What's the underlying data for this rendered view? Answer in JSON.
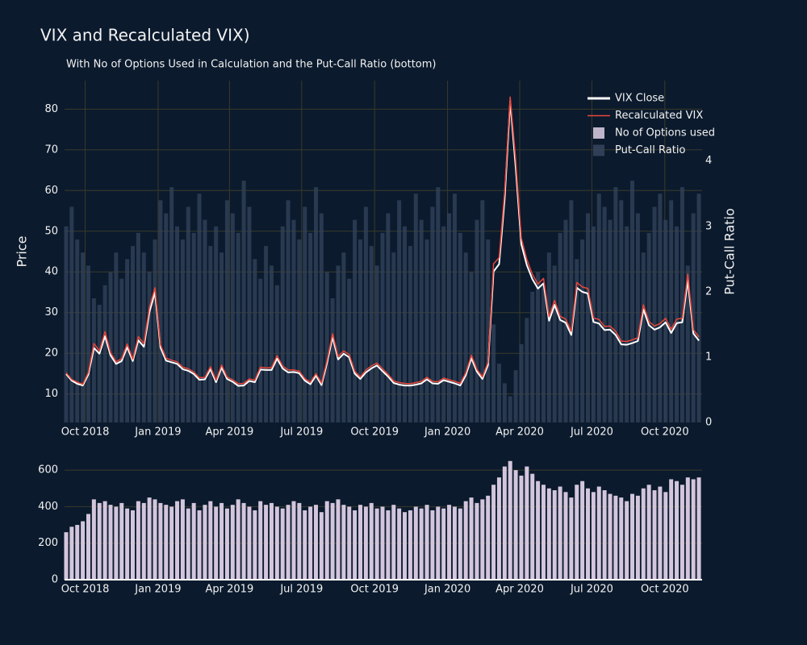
{
  "chart_data": [
    {
      "type": "line",
      "title": "VIX and Recalculated VIX)",
      "subtitle": "With No of Options Used in Calculation and the Put-Call Ratio (bottom)",
      "ylabel": "Price",
      "y2label": "Put-Call Ratio",
      "legend": "top-right",
      "grid": true,
      "x": [
        "2018-09-07",
        "2018-09-14",
        "2018-09-21",
        "2018-09-28",
        "2018-10-05",
        "2018-10-12",
        "2018-10-19",
        "2018-10-26",
        "2018-11-02",
        "2018-11-09",
        "2018-11-16",
        "2018-11-23",
        "2018-11-30",
        "2018-12-07",
        "2018-12-14",
        "2018-12-21",
        "2018-12-28",
        "2019-01-04",
        "2019-01-11",
        "2019-01-18",
        "2019-01-25",
        "2019-02-01",
        "2019-02-08",
        "2019-02-15",
        "2019-02-22",
        "2019-03-01",
        "2019-03-08",
        "2019-03-15",
        "2019-03-22",
        "2019-03-29",
        "2019-04-05",
        "2019-04-12",
        "2019-04-19",
        "2019-04-26",
        "2019-05-03",
        "2019-05-10",
        "2019-05-17",
        "2019-05-24",
        "2019-05-31",
        "2019-06-07",
        "2019-06-14",
        "2019-06-21",
        "2019-06-28",
        "2019-07-05",
        "2019-07-12",
        "2019-07-19",
        "2019-07-26",
        "2019-08-02",
        "2019-08-09",
        "2019-08-16",
        "2019-08-23",
        "2019-08-30",
        "2019-09-06",
        "2019-09-13",
        "2019-09-20",
        "2019-09-27",
        "2019-10-04",
        "2019-10-11",
        "2019-10-18",
        "2019-10-25",
        "2019-11-01",
        "2019-11-08",
        "2019-11-15",
        "2019-11-22",
        "2019-11-29",
        "2019-12-06",
        "2019-12-13",
        "2019-12-20",
        "2019-12-27",
        "2020-01-03",
        "2020-01-10",
        "2020-01-17",
        "2020-01-24",
        "2020-01-31",
        "2020-02-07",
        "2020-02-14",
        "2020-02-21",
        "2020-02-28",
        "2020-03-06",
        "2020-03-13",
        "2020-03-20",
        "2020-03-27",
        "2020-04-03",
        "2020-04-10",
        "2020-04-17",
        "2020-04-24",
        "2020-05-01",
        "2020-05-08",
        "2020-05-15",
        "2020-05-22",
        "2020-05-29",
        "2020-06-05",
        "2020-06-12",
        "2020-06-19",
        "2020-06-26",
        "2020-07-03",
        "2020-07-10",
        "2020-07-17",
        "2020-07-24",
        "2020-07-31",
        "2020-08-07",
        "2020-08-14",
        "2020-08-21",
        "2020-08-28",
        "2020-09-04",
        "2020-09-11",
        "2020-09-18",
        "2020-09-25",
        "2020-10-02",
        "2020-10-09",
        "2020-10-16",
        "2020-10-23",
        "2020-10-30",
        "2020-11-06",
        "2020-11-13"
      ],
      "xlim": [
        "2018-09-05",
        "2020-11-17"
      ],
      "xticks": [
        {
          "value": "2018-10-01",
          "label": "Oct 2018"
        },
        {
          "value": "2019-01-01",
          "label": "Jan 2019"
        },
        {
          "value": "2019-04-01",
          "label": "Apr 2019"
        },
        {
          "value": "2019-07-01",
          "label": "Jul 2019"
        },
        {
          "value": "2019-10-01",
          "label": "Oct 2019"
        },
        {
          "value": "2020-01-01",
          "label": "Jan 2020"
        },
        {
          "value": "2020-04-01",
          "label": "Apr 2020"
        },
        {
          "value": "2020-07-01",
          "label": "Jul 2020"
        },
        {
          "value": "2020-10-01",
          "label": "Oct 2020"
        }
      ],
      "ylim": [
        3,
        87
      ],
      "yticks": [
        10,
        20,
        30,
        40,
        50,
        60,
        70,
        80
      ],
      "y2lim": [
        0,
        5.23
      ],
      "y2ticks": [
        0,
        1,
        2,
        3,
        4
      ],
      "series": [
        {
          "name": "VIX Close",
          "color": "#ffffff",
          "type": "line",
          "values": [
            14.9,
            13.3,
            12.5,
            12.1,
            14.8,
            21.3,
            19.9,
            24.2,
            19.5,
            17.4,
            18.1,
            21.5,
            18.1,
            23.2,
            21.6,
            30.1,
            35.0,
            21.4,
            18.2,
            17.8,
            17.4,
            16.1,
            15.7,
            14.9,
            13.5,
            13.6,
            16.1,
            12.9,
            16.5,
            13.7,
            13.0,
            12.0,
            12.1,
            13.2,
            12.9,
            16.0,
            15.9,
            15.9,
            18.7,
            16.3,
            15.3,
            15.4,
            15.1,
            13.3,
            12.4,
            14.5,
            12.2,
            17.6,
            24.0,
            18.5,
            19.9,
            19.0,
            15.0,
            13.7,
            15.3,
            16.3,
            17.0,
            15.6,
            14.3,
            12.7,
            12.3,
            12.1,
            12.05,
            12.3,
            12.6,
            13.6,
            12.6,
            12.5,
            13.4,
            13.0,
            12.6,
            12.1,
            14.6,
            18.8,
            15.5,
            13.7,
            17.1,
            40.1,
            41.9,
            57.8,
            82.0,
            65.5,
            46.8,
            41.7,
            38.2,
            35.9,
            37.2,
            28.0,
            31.9,
            28.2,
            27.5,
            24.5,
            36.1,
            35.1,
            34.7,
            27.7,
            27.3,
            25.7,
            25.8,
            24.5,
            22.2,
            22.1,
            22.5,
            23.0,
            30.8,
            26.9,
            25.8,
            26.4,
            27.6,
            25.0,
            27.4,
            27.6,
            38.0,
            24.9,
            23.1
          ]
        },
        {
          "name": "Recalculated VIX",
          "color": "#e8473a",
          "type": "line",
          "values": [
            15.2,
            13.6,
            12.9,
            12.4,
            15.3,
            22.4,
            20.6,
            25.3,
            20.2,
            17.9,
            18.7,
            22.3,
            18.6,
            24.1,
            22.4,
            31.2,
            36.1,
            22.1,
            18.8,
            18.3,
            17.9,
            16.6,
            16.2,
            15.4,
            14.0,
            14.1,
            16.7,
            13.4,
            17.1,
            14.2,
            13.5,
            12.5,
            12.6,
            13.7,
            13.4,
            16.6,
            16.4,
            16.5,
            19.4,
            16.9,
            15.9,
            15.9,
            15.6,
            13.8,
            12.9,
            15.0,
            12.7,
            18.2,
            24.8,
            19.2,
            20.6,
            19.7,
            15.6,
            14.2,
            15.9,
            16.9,
            17.6,
            16.2,
            14.8,
            13.2,
            12.8,
            12.6,
            12.5,
            12.8,
            13.1,
            14.1,
            13.1,
            13.0,
            13.9,
            13.5,
            13.1,
            12.6,
            15.2,
            19.5,
            16.1,
            14.2,
            17.8,
            42.0,
            43.5,
            59.6,
            83.0,
            67.4,
            48.3,
            43.1,
            39.4,
            37.0,
            38.4,
            29.0,
            33.0,
            29.1,
            28.4,
            25.4,
            37.4,
            36.3,
            35.9,
            28.7,
            28.3,
            26.6,
            26.7,
            25.4,
            23.0,
            22.9,
            23.3,
            23.8,
            31.9,
            27.8,
            26.7,
            27.3,
            28.6,
            25.9,
            28.4,
            28.6,
            39.5,
            25.8,
            24.0
          ]
        },
        {
          "name": "Put-Call Ratio",
          "color": "#34445c",
          "type": "bar",
          "axis": "y2",
          "values": [
            3.0,
            3.3,
            2.8,
            2.6,
            2.4,
            1.9,
            1.8,
            2.1,
            2.3,
            2.6,
            2.2,
            2.5,
            2.7,
            2.9,
            2.6,
            2.3,
            2.8,
            3.4,
            3.2,
            3.6,
            3.0,
            2.8,
            3.3,
            2.9,
            3.5,
            3.1,
            2.7,
            3.0,
            2.6,
            3.4,
            3.2,
            2.9,
            3.7,
            3.3,
            2.5,
            2.2,
            2.7,
            2.4,
            2.1,
            3.0,
            3.4,
            3.1,
            2.8,
            3.3,
            2.9,
            3.6,
            3.2,
            2.3,
            1.9,
            2.4,
            2.6,
            2.2,
            3.1,
            2.8,
            3.3,
            2.7,
            2.4,
            2.9,
            3.2,
            2.6,
            3.4,
            3.0,
            2.7,
            3.5,
            3.1,
            2.8,
            3.3,
            3.6,
            3.0,
            3.2,
            3.5,
            2.9,
            2.6,
            2.3,
            3.1,
            3.4,
            2.8,
            1.5,
            0.9,
            0.6,
            0.4,
            0.8,
            1.2,
            1.6,
            2.0,
            2.3,
            2.1,
            2.6,
            2.4,
            2.9,
            3.1,
            3.4,
            2.5,
            2.8,
            3.2,
            3.0,
            3.5,
            3.3,
            3.1,
            3.6,
            3.4,
            3.0,
            3.7,
            3.2,
            2.6,
            2.9,
            3.3,
            3.5,
            3.1,
            3.4,
            3.0,
            3.6,
            2.4,
            3.2,
            3.5
          ]
        }
      ]
    },
    {
      "type": "bar",
      "grid": true,
      "x": [
        "2018-09-07",
        "2018-09-14",
        "2018-09-21",
        "2018-09-28",
        "2018-10-05",
        "2018-10-12",
        "2018-10-19",
        "2018-10-26",
        "2018-11-02",
        "2018-11-09",
        "2018-11-16",
        "2018-11-23",
        "2018-11-30",
        "2018-12-07",
        "2018-12-14",
        "2018-12-21",
        "2018-12-28",
        "2019-01-04",
        "2019-01-11",
        "2019-01-18",
        "2019-01-25",
        "2019-02-01",
        "2019-02-08",
        "2019-02-15",
        "2019-02-22",
        "2019-03-01",
        "2019-03-08",
        "2019-03-15",
        "2019-03-22",
        "2019-03-29",
        "2019-04-05",
        "2019-04-12",
        "2019-04-19",
        "2019-04-26",
        "2019-05-03",
        "2019-05-10",
        "2019-05-17",
        "2019-05-24",
        "2019-05-31",
        "2019-06-07",
        "2019-06-14",
        "2019-06-21",
        "2019-06-28",
        "2019-07-05",
        "2019-07-12",
        "2019-07-19",
        "2019-07-26",
        "2019-08-02",
        "2019-08-09",
        "2019-08-16",
        "2019-08-23",
        "2019-08-30",
        "2019-09-06",
        "2019-09-13",
        "2019-09-20",
        "2019-09-27",
        "2019-10-04",
        "2019-10-11",
        "2019-10-18",
        "2019-10-25",
        "2019-11-01",
        "2019-11-08",
        "2019-11-15",
        "2019-11-22",
        "2019-11-29",
        "2019-12-06",
        "2019-12-13",
        "2019-12-20",
        "2019-12-27",
        "2020-01-03",
        "2020-01-10",
        "2020-01-17",
        "2020-01-24",
        "2020-01-31",
        "2020-02-07",
        "2020-02-14",
        "2020-02-21",
        "2020-02-28",
        "2020-03-06",
        "2020-03-13",
        "2020-03-20",
        "2020-03-27",
        "2020-04-03",
        "2020-04-10",
        "2020-04-17",
        "2020-04-24",
        "2020-05-01",
        "2020-05-08",
        "2020-05-15",
        "2020-05-22",
        "2020-05-29",
        "2020-06-05",
        "2020-06-12",
        "2020-06-19",
        "2020-06-26",
        "2020-07-03",
        "2020-07-10",
        "2020-07-17",
        "2020-07-24",
        "2020-07-31",
        "2020-08-07",
        "2020-08-14",
        "2020-08-21",
        "2020-08-28",
        "2020-09-04",
        "2020-09-11",
        "2020-09-18",
        "2020-09-25",
        "2020-10-02",
        "2020-10-09",
        "2020-10-16",
        "2020-10-23",
        "2020-10-30",
        "2020-11-06",
        "2020-11-13"
      ],
      "xlim": [
        "2018-09-05",
        "2020-11-17"
      ],
      "xticks": [
        {
          "value": "2018-10-01",
          "label": "Oct 2018"
        },
        {
          "value": "2019-01-01",
          "label": "Jan 2019"
        },
        {
          "value": "2019-04-01",
          "label": "Apr 2019"
        },
        {
          "value": "2019-07-01",
          "label": "Jul 2019"
        },
        {
          "value": "2019-10-01",
          "label": "Oct 2019"
        },
        {
          "value": "2020-01-01",
          "label": "Jan 2020"
        },
        {
          "value": "2020-04-01",
          "label": "Apr 2020"
        },
        {
          "value": "2020-07-01",
          "label": "Jul 2020"
        },
        {
          "value": "2020-10-01",
          "label": "Oct 2020"
        }
      ],
      "ylim": [
        0,
        680
      ],
      "yticks": [
        0,
        200,
        400,
        600
      ],
      "series": [
        {
          "name": "No of Options used",
          "color": "#d3c6dc",
          "type": "bar",
          "values": [
            260,
            290,
            300,
            320,
            360,
            440,
            420,
            430,
            410,
            400,
            420,
            390,
            380,
            430,
            420,
            450,
            440,
            420,
            410,
            400,
            430,
            440,
            390,
            420,
            380,
            410,
            430,
            400,
            420,
            390,
            410,
            440,
            420,
            400,
            380,
            430,
            410,
            420,
            400,
            390,
            410,
            430,
            420,
            380,
            400,
            410,
            370,
            430,
            420,
            440,
            410,
            400,
            380,
            410,
            400,
            420,
            390,
            400,
            380,
            410,
            390,
            370,
            380,
            400,
            390,
            410,
            380,
            400,
            390,
            410,
            400,
            390,
            430,
            450,
            420,
            440,
            460,
            520,
            560,
            620,
            650,
            600,
            570,
            620,
            580,
            540,
            520,
            500,
            490,
            510,
            480,
            450,
            520,
            540,
            500,
            480,
            510,
            490,
            470,
            460,
            450,
            430,
            470,
            460,
            500,
            520,
            490,
            510,
            480,
            550,
            540,
            520,
            560,
            550,
            560
          ]
        }
      ]
    }
  ]
}
